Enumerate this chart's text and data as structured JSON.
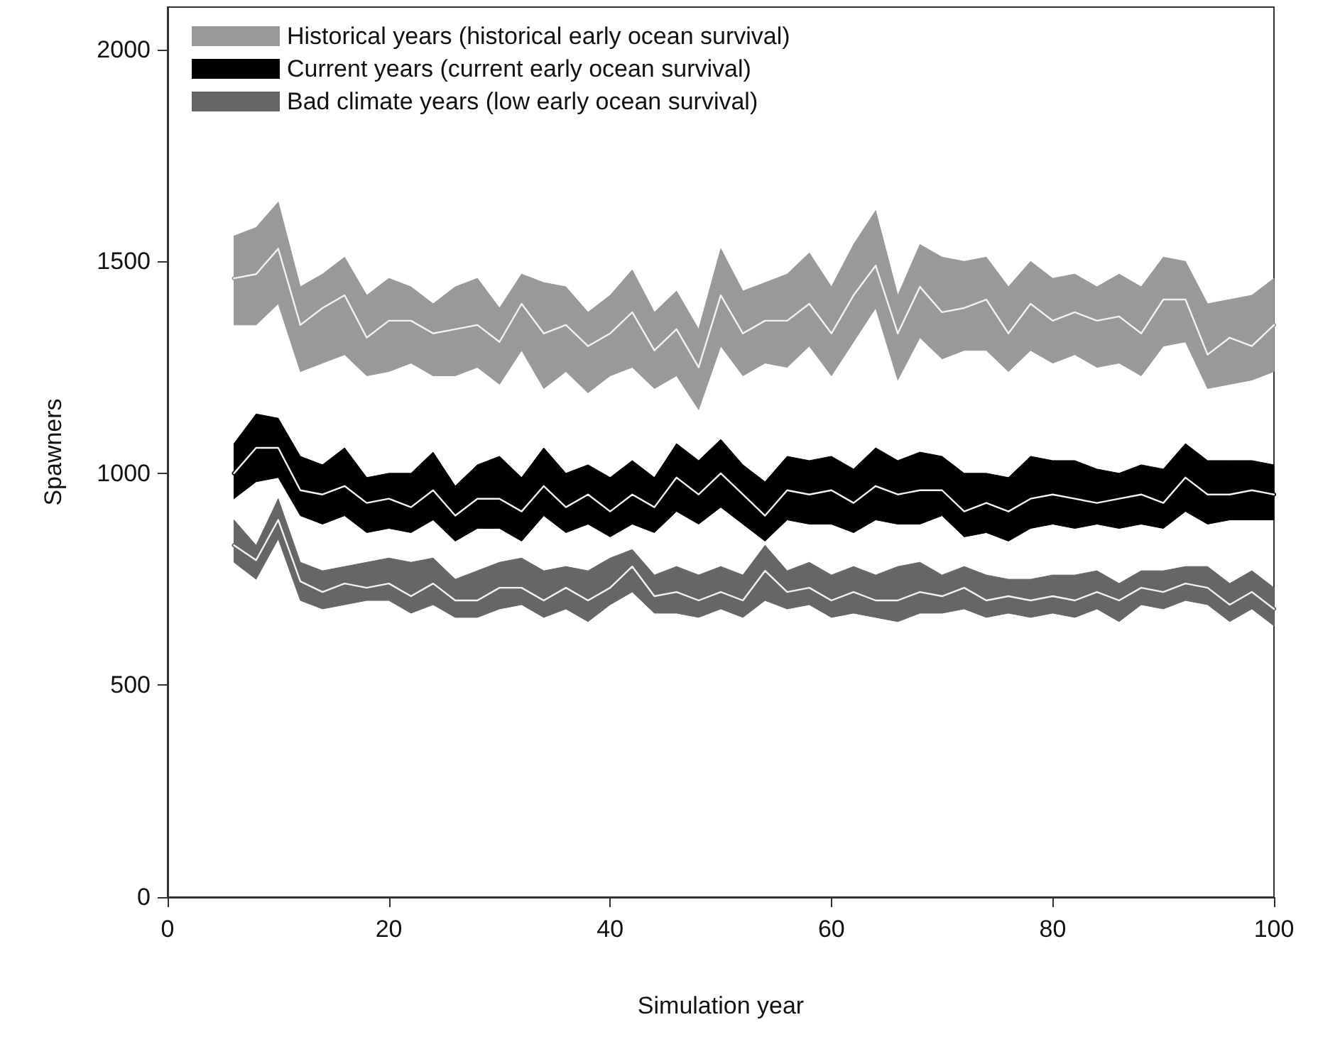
{
  "chart_data": {
    "type": "line",
    "xlabel": "Simulation year",
    "ylabel": "Spawners",
    "xlim": [
      0,
      100
    ],
    "xticks": [
      0,
      20,
      40,
      60,
      80,
      100
    ],
    "ylim": [
      0,
      2100
    ],
    "yticks": [
      0,
      500,
      1000,
      1500,
      2000
    ],
    "grid": false,
    "legend": "top left",
    "marker": "none",
    "line_style": "solid",
    "x": [
      6,
      8,
      10,
      12,
      14,
      16,
      18,
      20,
      22,
      24,
      26,
      28,
      30,
      32,
      34,
      36,
      38,
      40,
      42,
      44,
      46,
      48,
      50,
      52,
      54,
      56,
      58,
      60,
      62,
      64,
      66,
      68,
      70,
      72,
      74,
      76,
      78,
      80,
      82,
      84,
      86,
      88,
      90,
      92,
      94,
      96,
      98,
      100
    ],
    "series": [
      {
        "name": "Historical years (historical early ocean survival)",
        "color": "#999999",
        "values": [
          1460,
          1470,
          1530,
          1350,
          1390,
          1420,
          1320,
          1360,
          1360,
          1330,
          1340,
          1350,
          1310,
          1400,
          1330,
          1350,
          1300,
          1330,
          1380,
          1290,
          1340,
          1250,
          1420,
          1330,
          1360,
          1360,
          1400,
          1330,
          1420,
          1490,
          1330,
          1440,
          1380,
          1390,
          1410,
          1330,
          1400,
          1360,
          1380,
          1360,
          1370,
          1330,
          1410,
          1410,
          1280,
          1320,
          1300,
          1350
        ],
        "upper": [
          1560,
          1580,
          1640,
          1440,
          1470,
          1510,
          1420,
          1460,
          1440,
          1400,
          1440,
          1460,
          1390,
          1470,
          1450,
          1440,
          1380,
          1420,
          1480,
          1380,
          1430,
          1340,
          1530,
          1430,
          1450,
          1470,
          1520,
          1440,
          1540,
          1620,
          1420,
          1540,
          1510,
          1500,
          1510,
          1440,
          1500,
          1460,
          1470,
          1440,
          1470,
          1440,
          1510,
          1500,
          1400,
          1410,
          1420,
          1460
        ],
        "lower": [
          1350,
          1350,
          1400,
          1240,
          1260,
          1280,
          1230,
          1240,
          1260,
          1230,
          1230,
          1250,
          1210,
          1290,
          1200,
          1240,
          1190,
          1230,
          1250,
          1200,
          1230,
          1150,
          1300,
          1230,
          1260,
          1250,
          1300,
          1230,
          1310,
          1390,
          1220,
          1320,
          1270,
          1290,
          1290,
          1240,
          1290,
          1260,
          1280,
          1250,
          1260,
          1230,
          1300,
          1310,
          1200,
          1210,
          1220,
          1240
        ]
      },
      {
        "name": "Current years (current early ocean survival)",
        "color": "#000000",
        "values": [
          1000,
          1060,
          1060,
          960,
          950,
          970,
          930,
          940,
          920,
          960,
          900,
          940,
          940,
          910,
          970,
          920,
          950,
          910,
          950,
          920,
          990,
          950,
          1000,
          950,
          900,
          960,
          950,
          960,
          930,
          970,
          950,
          960,
          960,
          910,
          930,
          910,
          940,
          950,
          940,
          930,
          940,
          950,
          930,
          990,
          950,
          950,
          960,
          950
        ],
        "upper": [
          1070,
          1140,
          1130,
          1040,
          1020,
          1060,
          990,
          1000,
          1000,
          1050,
          970,
          1020,
          1040,
          990,
          1060,
          1000,
          1020,
          990,
          1030,
          990,
          1070,
          1030,
          1080,
          1020,
          980,
          1040,
          1030,
          1040,
          1010,
          1060,
          1030,
          1050,
          1040,
          1000,
          1000,
          990,
          1040,
          1030,
          1030,
          1010,
          1000,
          1020,
          1010,
          1070,
          1030,
          1030,
          1030,
          1020
        ],
        "lower": [
          940,
          980,
          990,
          900,
          880,
          900,
          860,
          870,
          860,
          890,
          840,
          870,
          870,
          840,
          900,
          860,
          880,
          850,
          880,
          860,
          910,
          880,
          920,
          880,
          840,
          890,
          880,
          880,
          860,
          890,
          880,
          880,
          900,
          850,
          860,
          840,
          870,
          880,
          870,
          880,
          870,
          880,
          870,
          910,
          880,
          890,
          890,
          890
        ]
      },
      {
        "name": "Bad climate years (low early ocean survival)",
        "color": "#666666",
        "values": [
          830,
          795,
          890,
          745,
          720,
          740,
          730,
          740,
          710,
          740,
          700,
          700,
          730,
          730,
          700,
          730,
          700,
          730,
          780,
          710,
          720,
          700,
          720,
          700,
          770,
          720,
          730,
          700,
          720,
          700,
          700,
          720,
          710,
          730,
          700,
          710,
          700,
          710,
          700,
          720,
          700,
          730,
          720,
          740,
          730,
          690,
          720,
          680
        ],
        "upper": [
          890,
          830,
          940,
          790,
          770,
          780,
          790,
          800,
          790,
          800,
          750,
          770,
          790,
          800,
          770,
          780,
          770,
          800,
          820,
          760,
          780,
          760,
          780,
          760,
          830,
          770,
          790,
          760,
          780,
          760,
          780,
          790,
          760,
          780,
          760,
          750,
          750,
          760,
          760,
          770,
          740,
          770,
          770,
          780,
          780,
          740,
          770,
          730
        ],
        "lower": [
          790,
          750,
          845,
          700,
          680,
          690,
          700,
          700,
          670,
          690,
          660,
          660,
          680,
          690,
          660,
          680,
          650,
          690,
          720,
          670,
          670,
          660,
          680,
          660,
          700,
          680,
          690,
          660,
          670,
          660,
          650,
          670,
          670,
          680,
          660,
          670,
          660,
          670,
          660,
          680,
          650,
          690,
          680,
          700,
          690,
          650,
          680,
          640
        ]
      }
    ]
  }
}
